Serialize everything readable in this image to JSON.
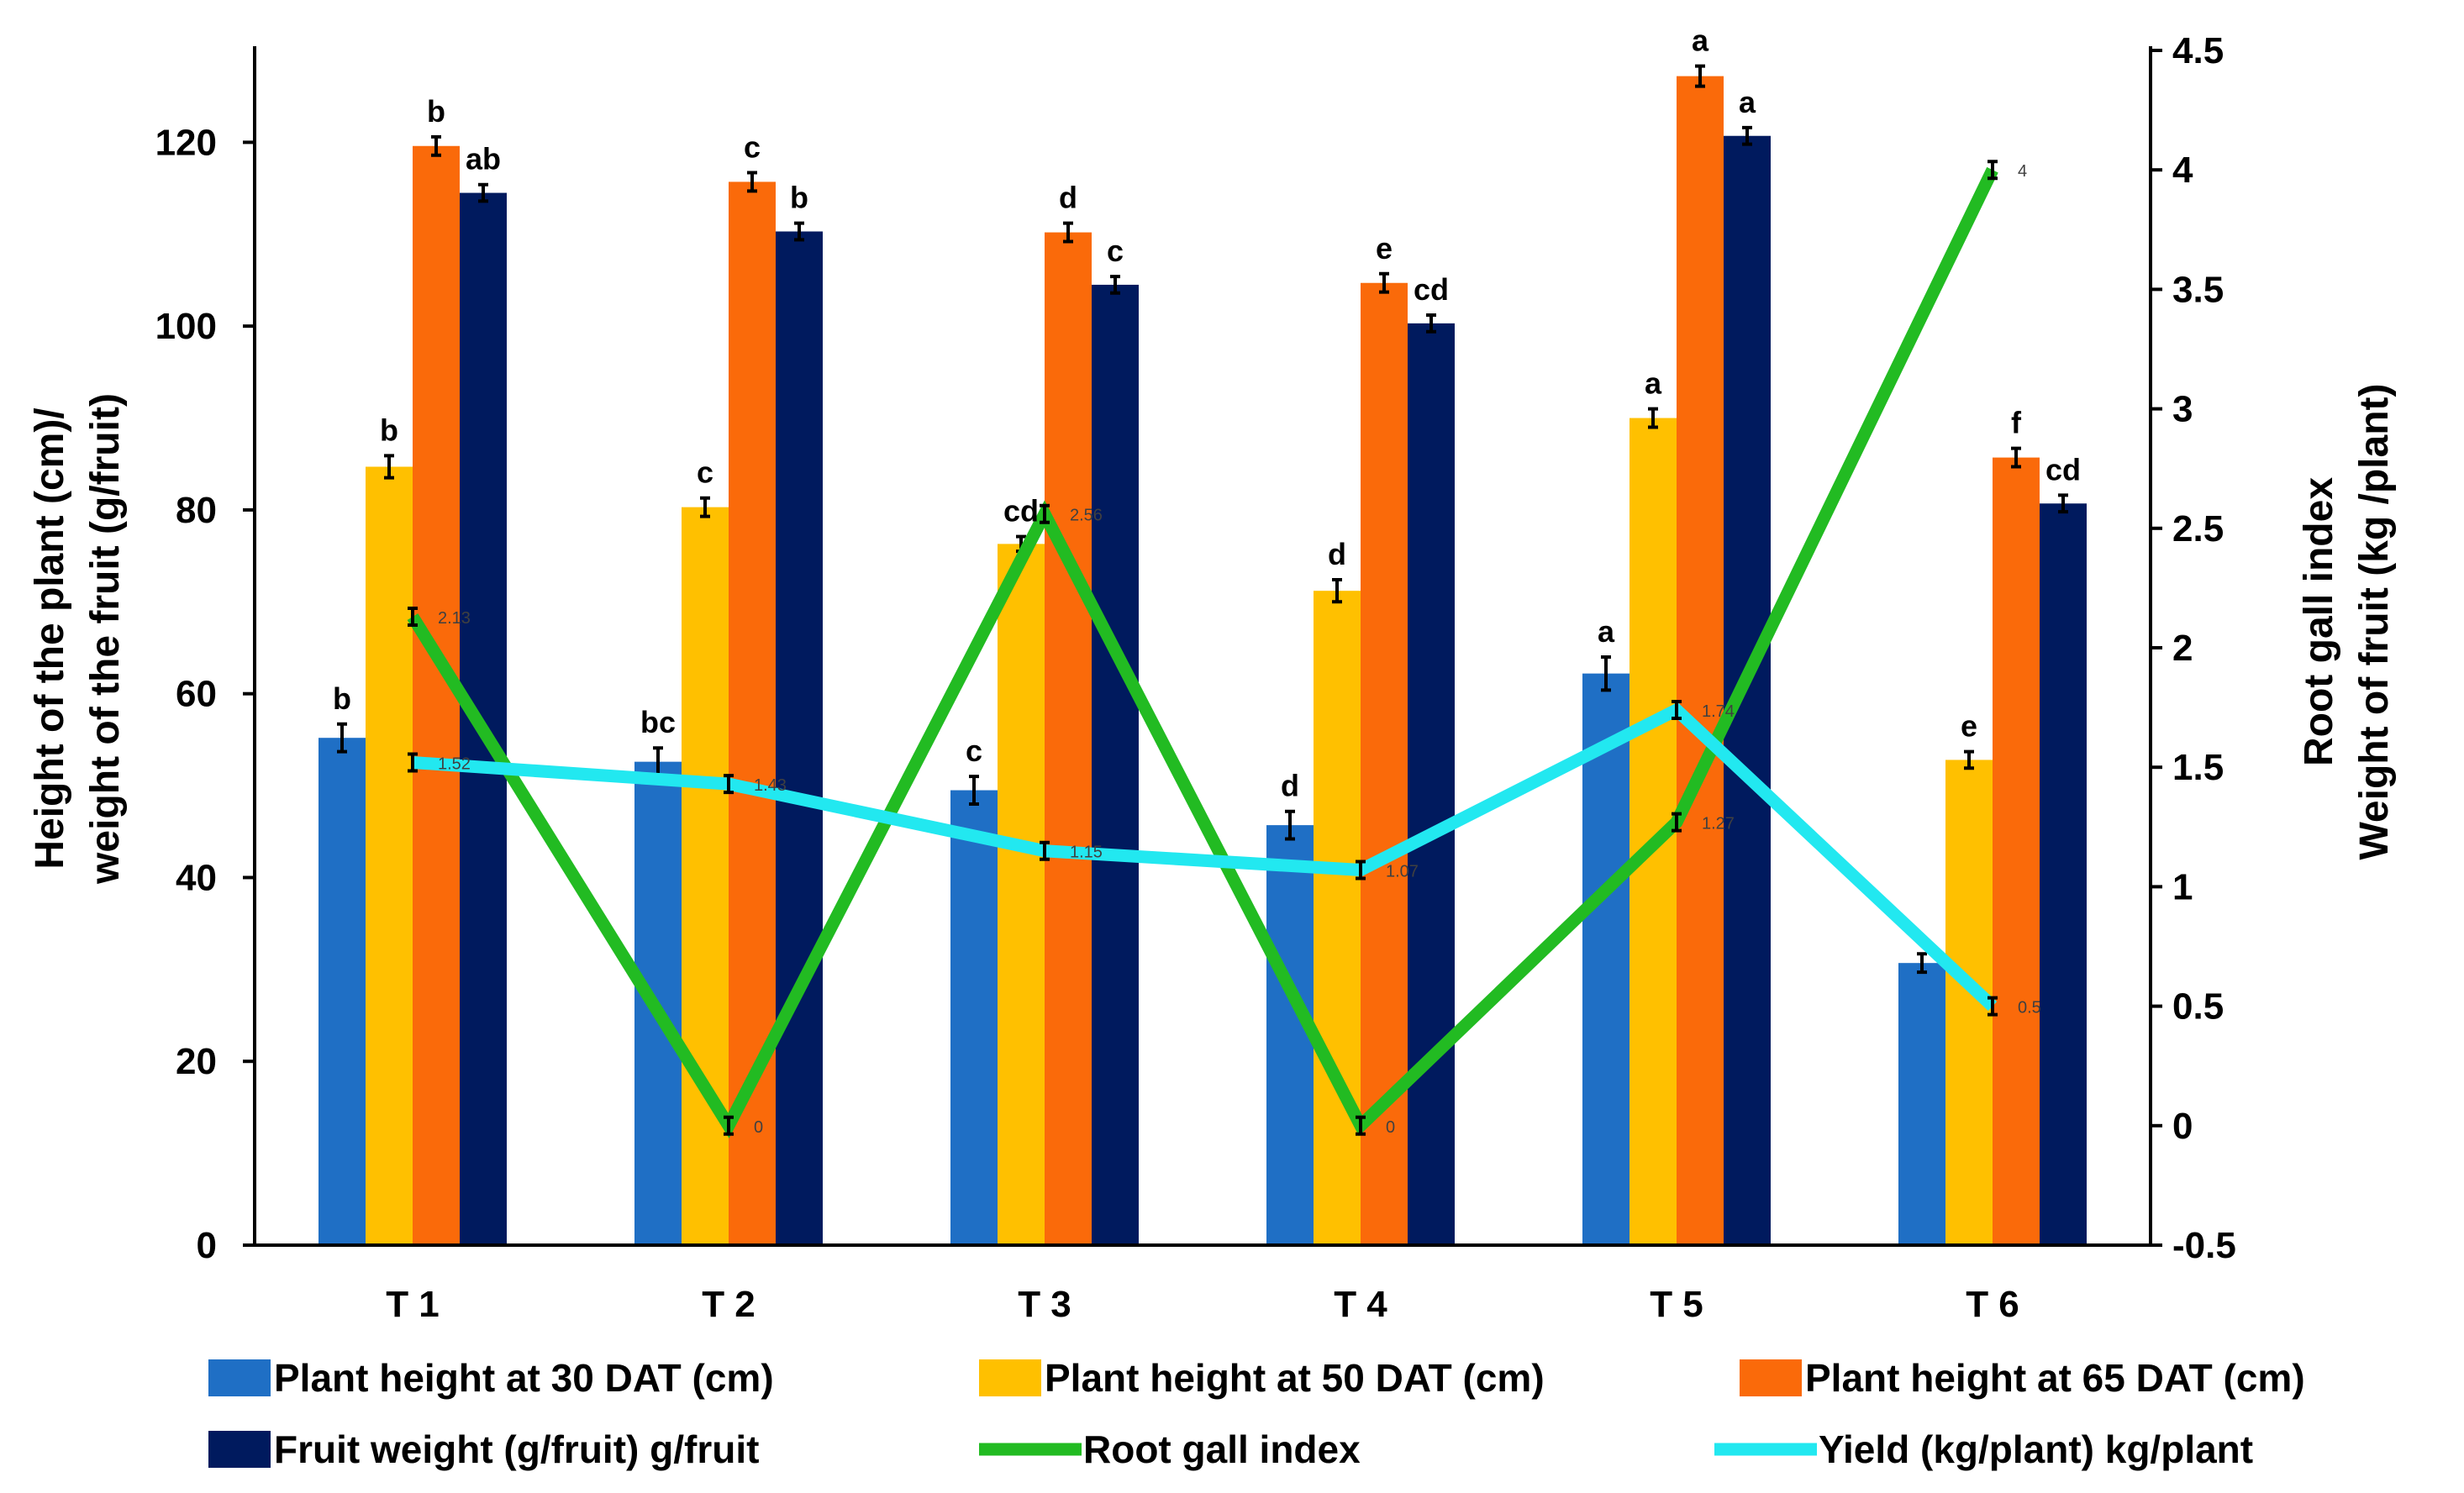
{
  "chart_data": {
    "type": "bar",
    "categories": [
      "T 1",
      "T 2",
      "T 3",
      "T 4",
      "T 5",
      "T 6"
    ],
    "y_left": {
      "label_lines": [
        "Height of the plant (cm)/",
        "weight of the fruit (g/fruit)"
      ],
      "ylim": [
        0,
        130
      ],
      "ticks": [
        0,
        20,
        40,
        60,
        80,
        100,
        120
      ],
      "tick_labels": [
        "0",
        "20",
        "40",
        "60",
        "80",
        "100",
        "120"
      ]
    },
    "y_right": {
      "label_lines": [
        "Root gall index",
        "Weight of fruit (kg /plant)"
      ],
      "ylim": [
        -0.5,
        4.5
      ],
      "ticks": [
        -0.5,
        0,
        0.5,
        1,
        1.5,
        2,
        2.5,
        3,
        3.5,
        4,
        4.5
      ],
      "tick_labels": [
        "-0.5",
        "0",
        "0.5",
        "1",
        "1.5",
        "2",
        "2.5",
        "3",
        "3.5",
        "4",
        "4.5"
      ]
    },
    "bar_series": [
      {
        "name": "Plant height at 30 DAT (cm)",
        "color": "#1f6fc5",
        "values": [
          55.2,
          52.6,
          49.5,
          45.7,
          62.2,
          30.7
        ],
        "errors": [
          1.5,
          1.5,
          1.5,
          1.5,
          1.8,
          1.0
        ],
        "letters": [
          "b",
          "bc",
          "c",
          "d",
          "a",
          ""
        ]
      },
      {
        "name": "Plant height at 50 DAT (cm)",
        "color": "#ffc000",
        "values": [
          84.7,
          80.3,
          76.3,
          71.2,
          90.0,
          52.8
        ],
        "errors": [
          1.2,
          1.0,
          0.8,
          1.2,
          1.0,
          0.9
        ],
        "letters": [
          "b",
          "c",
          "cd",
          "d",
          "a",
          "e"
        ]
      },
      {
        "name": "Plant height at 65 DAT (cm)",
        "color": "#fa6a0a",
        "values": [
          119.6,
          115.7,
          110.2,
          104.7,
          127.2,
          85.7
        ],
        "errors": [
          1.0,
          1.0,
          1.0,
          1.0,
          1.1,
          1.0
        ],
        "letters": [
          "b",
          "c",
          "d",
          "e",
          "a",
          "f"
        ]
      },
      {
        "name": "Fruit weight (g/fruit) g/fruit",
        "color": "#001a5e",
        "values": [
          114.5,
          110.3,
          104.5,
          100.3,
          120.7,
          80.7
        ],
        "errors": [
          0.9,
          0.9,
          0.9,
          0.9,
          0.9,
          0.9
        ],
        "letters": [
          "ab",
          "b",
          "c",
          "cd",
          "a",
          "cd"
        ]
      }
    ],
    "line_series": [
      {
        "name": "Root gall index",
        "color": "#22bb22",
        "axis": "right",
        "values": [
          2.13,
          0,
          2.56,
          0,
          1.27,
          4
        ],
        "labels": [
          "2.13",
          "0",
          "2.56",
          "0",
          "1.27",
          "4"
        ]
      },
      {
        "name": "Yield (kg/plant) kg/plant",
        "color": "#22e8f0",
        "axis": "right",
        "values": [
          1.52,
          1.43,
          1.15,
          1.07,
          1.74,
          0.5
        ],
        "labels": [
          "1.52",
          "1.43",
          "1.15",
          "1.07",
          "1.74",
          "0.5"
        ]
      }
    ],
    "legend_position": "bottom",
    "grid": false
  }
}
